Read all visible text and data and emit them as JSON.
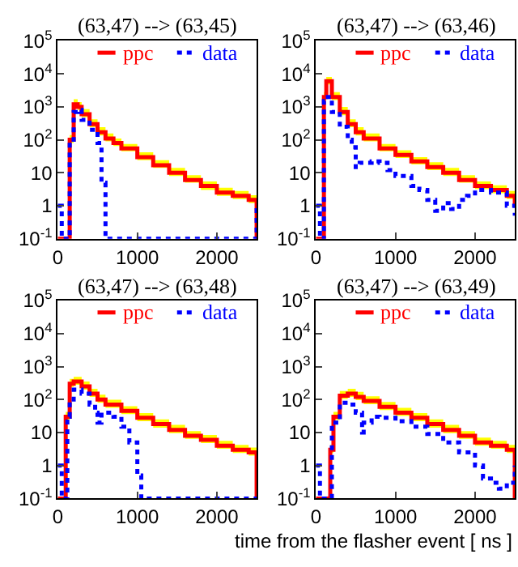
{
  "chart_data": [
    {
      "type": "step",
      "title": "(63,47) --> (63,45)",
      "xlim": [
        0,
        2500
      ],
      "xticks": [
        0,
        1000,
        2000
      ],
      "ylim": [
        0.1,
        100000
      ],
      "log": true,
      "yticks": [
        {
          "value": 0.1,
          "label": "10$^{-1}$"
        },
        1,
        10,
        {
          "value": 100,
          "label": "10$^{2}$"
        },
        {
          "value": 1000,
          "label": "10$^{3}$"
        },
        {
          "value": 10000,
          "label": "10$^{4}$"
        },
        {
          "value": 100000,
          "label": "10$^{5}$"
        }
      ],
      "legend": "top",
      "series": [
        {
          "name": "ppc",
          "color": "#ff0000",
          "line_style": "solid",
          "x": [
            0,
            100,
            150,
            200,
            250,
            300,
            400,
            500,
            600,
            700,
            800,
            1000,
            1200,
            1400,
            1600,
            1800,
            2000,
            2200,
            2400,
            2500
          ],
          "values": [
            0.1,
            0.1,
            100,
            1200,
            1000,
            600,
            300,
            170,
            110,
            80,
            55,
            30,
            17,
            10,
            6,
            4,
            2.5,
            2,
            1.5,
            0.1
          ],
          "lower": [
            0.1,
            0.1,
            80,
            950,
            800,
            480,
            240,
            135,
            90,
            65,
            45,
            24,
            14,
            8,
            5,
            3,
            2,
            1.6,
            1.2,
            0.1
          ],
          "upper": [
            0.1,
            0.1,
            140,
            1700,
            1400,
            850,
            420,
            240,
            155,
            110,
            75,
            42,
            24,
            14,
            8.5,
            5.5,
            3.5,
            2.8,
            2.1,
            0.1
          ]
        },
        {
          "name": "data",
          "color": "#0000ff",
          "line_style": "dotted",
          "x": [
            0,
            50,
            100,
            150,
            200,
            250,
            300,
            400,
            500,
            550,
            600,
            2450,
            2500
          ],
          "values": [
            1,
            0.1,
            0.1,
            100,
            700,
            800,
            400,
            200,
            80,
            5,
            0.1,
            0.1,
            1
          ]
        }
      ]
    },
    {
      "type": "step",
      "title": "(63,47) --> (63,46)",
      "xlim": [
        0,
        2500
      ],
      "xticks": [
        0,
        1000,
        2000
      ],
      "ylim": [
        0.1,
        100000
      ],
      "log": true,
      "yticks": [
        {
          "value": 0.1,
          "label": "10$^{-1}$"
        },
        1,
        10,
        {
          "value": 100,
          "label": "10$^{2}$"
        },
        {
          "value": 1000,
          "label": "10$^{3}$"
        },
        {
          "value": 10000,
          "label": "10$^{4}$"
        },
        {
          "value": 100000,
          "label": "10$^{5}$"
        }
      ],
      "legend": "top",
      "series": [
        {
          "name": "ppc",
          "color": "#ff0000",
          "line_style": "solid",
          "x": [
            0,
            50,
            100,
            130,
            200,
            300,
            400,
            500,
            600,
            800,
            1000,
            1200,
            1400,
            1600,
            1800,
            2000,
            2200,
            2400,
            2500
          ],
          "values": [
            0.1,
            0.1,
            2000,
            6000,
            2000,
            700,
            300,
            170,
            110,
            55,
            35,
            22,
            15,
            10,
            6,
            4,
            3,
            2,
            1
          ],
          "lower": [
            0.1,
            0.1,
            1600,
            4800,
            1600,
            560,
            240,
            135,
            90,
            45,
            28,
            18,
            12,
            8,
            5,
            3.2,
            2.4,
            1.6,
            0.8
          ],
          "upper": [
            0.1,
            0.1,
            2800,
            8000,
            2800,
            1000,
            420,
            240,
            155,
            75,
            48,
            30,
            21,
            14,
            8.5,
            5.5,
            4.2,
            2.8,
            1.4
          ]
        },
        {
          "name": "data",
          "color": "#0000ff",
          "line_style": "dotted",
          "x": [
            0,
            50,
            100,
            150,
            200,
            300,
            400,
            450,
            500,
            550,
            700,
            800,
            900,
            1000,
            1200,
            1300,
            1400,
            1500,
            1600,
            1700,
            1800,
            1900,
            2000,
            2200,
            2400,
            2500
          ],
          "values": [
            1,
            0.1,
            1500,
            2000,
            700,
            250,
            100,
            60,
            15,
            20,
            22,
            20,
            12,
            8,
            4,
            3,
            1.5,
            0.7,
            1.2,
            0.8,
            1.5,
            2,
            3,
            2.5,
            1,
            0.5
          ]
        }
      ]
    },
    {
      "type": "step",
      "title": "(63,47) --> (63,48)",
      "xlim": [
        0,
        2500
      ],
      "xticks": [
        0,
        1000,
        2000
      ],
      "ylim": [
        0.1,
        100000
      ],
      "log": true,
      "yticks": [
        {
          "value": 0.1,
          "label": "10$^{-1}$"
        },
        1,
        10,
        {
          "value": 100,
          "label": "10$^{2}$"
        },
        {
          "value": 1000,
          "label": "10$^{3}$"
        },
        {
          "value": 10000,
          "label": "10$^{4}$"
        },
        {
          "value": 100000,
          "label": "10$^{5}$"
        }
      ],
      "legend": "top",
      "series": [
        {
          "name": "ppc",
          "color": "#ff0000",
          "line_style": "solid",
          "x": [
            0,
            80,
            100,
            150,
            200,
            300,
            400,
            500,
            600,
            800,
            1000,
            1200,
            1400,
            1600,
            1800,
            2000,
            2200,
            2400,
            2500
          ],
          "values": [
            0.1,
            0.1,
            30,
            300,
            350,
            250,
            150,
            100,
            70,
            45,
            28,
            18,
            12,
            8,
            6,
            4,
            3,
            2.5,
            0.1
          ],
          "lower": [
            0.1,
            0.1,
            24,
            240,
            280,
            200,
            120,
            80,
            56,
            36,
            22,
            14,
            9.5,
            6.4,
            4.8,
            3.2,
            2.4,
            2,
            0.1
          ],
          "upper": [
            0.1,
            0.1,
            42,
            420,
            490,
            350,
            210,
            140,
            98,
            63,
            39,
            25,
            17,
            11,
            8.4,
            5.6,
            4.2,
            3.5,
            0.1
          ]
        },
        {
          "name": "data",
          "color": "#0000ff",
          "line_style": "dotted",
          "x": [
            0,
            50,
            100,
            120,
            150,
            200,
            300,
            400,
            470,
            500,
            550,
            600,
            700,
            800,
            900,
            1000,
            1050,
            2500
          ],
          "values": [
            1,
            0.1,
            0.1,
            30,
            100,
            200,
            150,
            70,
            40,
            20,
            40,
            40,
            30,
            15,
            5,
            0.5,
            0.1,
            0.1
          ]
        }
      ]
    },
    {
      "type": "step",
      "title": "(63,47) --> (63,49)",
      "xlabel": "time from the flasher event [ ns ]",
      "xlim": [
        0,
        2500
      ],
      "xticks": [
        0,
        1000,
        2000
      ],
      "ylim": [
        0.1,
        100000
      ],
      "log": true,
      "yticks": [
        {
          "value": 0.1,
          "label": "10$^{-1}$"
        },
        1,
        10,
        {
          "value": 100,
          "label": "10$^{2}$"
        },
        {
          "value": 1000,
          "label": "10$^{3}$"
        },
        {
          "value": 10000,
          "label": "10$^{4}$"
        },
        {
          "value": 100000,
          "label": "10$^{5}$"
        }
      ],
      "legend": "top",
      "series": [
        {
          "name": "ppc",
          "color": "#ff0000",
          "line_style": "solid",
          "x": [
            0,
            150,
            180,
            220,
            300,
            400,
            500,
            600,
            800,
            1000,
            1200,
            1400,
            1600,
            1800,
            2000,
            2200,
            2400,
            2500
          ],
          "values": [
            0.1,
            0.1,
            3,
            30,
            130,
            150,
            120,
            90,
            60,
            40,
            28,
            18,
            12,
            8,
            5,
            4,
            3,
            0.1
          ],
          "lower": [
            0.1,
            0.1,
            2.4,
            24,
            104,
            120,
            96,
            72,
            48,
            32,
            22,
            14,
            9.6,
            6.4,
            4,
            3.2,
            2.4,
            0.1
          ],
          "upper": [
            0.1,
            0.1,
            4.2,
            42,
            180,
            210,
            170,
            125,
            84,
            56,
            39,
            25,
            17,
            11,
            7,
            5.6,
            4.2,
            0.1
          ]
        },
        {
          "name": "data",
          "color": "#0000ff",
          "line_style": "dotted",
          "x": [
            0,
            50,
            170,
            200,
            300,
            400,
            500,
            580,
            600,
            700,
            800,
            1000,
            1200,
            1400,
            1600,
            1800,
            2000,
            2100,
            2200,
            2300,
            2400,
            2500
          ],
          "values": [
            1,
            0.1,
            0.1,
            20,
            80,
            70,
            40,
            10,
            20,
            30,
            28,
            22,
            15,
            9,
            5,
            2.5,
            1,
            0.4,
            0.3,
            0.2,
            0.3,
            1
          ]
        }
      ]
    }
  ]
}
